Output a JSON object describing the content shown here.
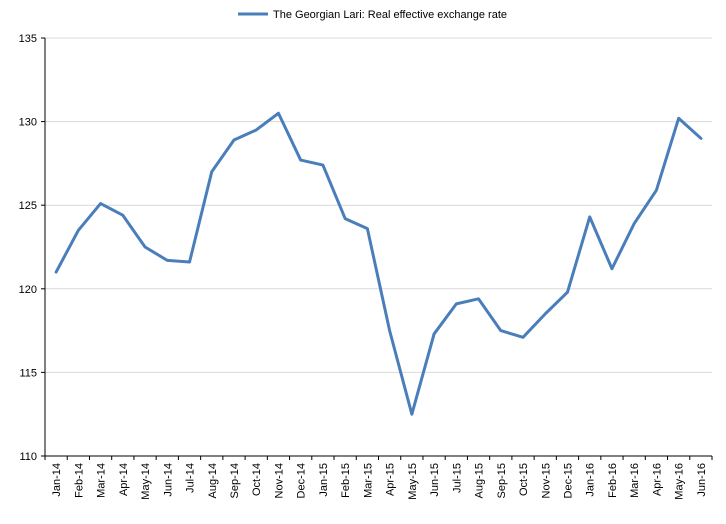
{
  "chart_data": {
    "type": "line",
    "title": "",
    "xlabel": "",
    "ylabel": "",
    "ylim": [
      110,
      135
    ],
    "yticks": [
      110,
      115,
      120,
      125,
      130,
      135
    ],
    "grid": "horizontal",
    "legend_position": "top-center",
    "categories": [
      "Jan-14",
      "Feb-14",
      "Mar-14",
      "Apr-14",
      "May-14",
      "Jun-14",
      "Jul-14",
      "Aug-14",
      "Sep-14",
      "Oct-14",
      "Nov-14",
      "Dec-14",
      "Jan-15",
      "Feb-15",
      "Mar-15",
      "Apr-15",
      "May-15",
      "Jun-15",
      "Jul-15",
      "Aug-15",
      "Sep-15",
      "Oct-15",
      "Nov-15",
      "Dec-15",
      "Jan-16",
      "Feb-16",
      "Mar-16",
      "Apr-16",
      "May-16",
      "Jun-16"
    ],
    "series": [
      {
        "name": "The Georgian Lari: Real effective exchange rate",
        "color": "#4a7ebb",
        "values": [
          121.0,
          123.5,
          125.1,
          124.4,
          122.5,
          121.7,
          121.6,
          127.0,
          128.9,
          129.5,
          130.5,
          127.7,
          127.4,
          124.2,
          123.6,
          117.5,
          112.5,
          117.3,
          119.1,
          119.4,
          117.5,
          117.1,
          118.5,
          119.8,
          124.3,
          121.2,
          123.9,
          125.9,
          130.2,
          129.0
        ]
      }
    ]
  }
}
